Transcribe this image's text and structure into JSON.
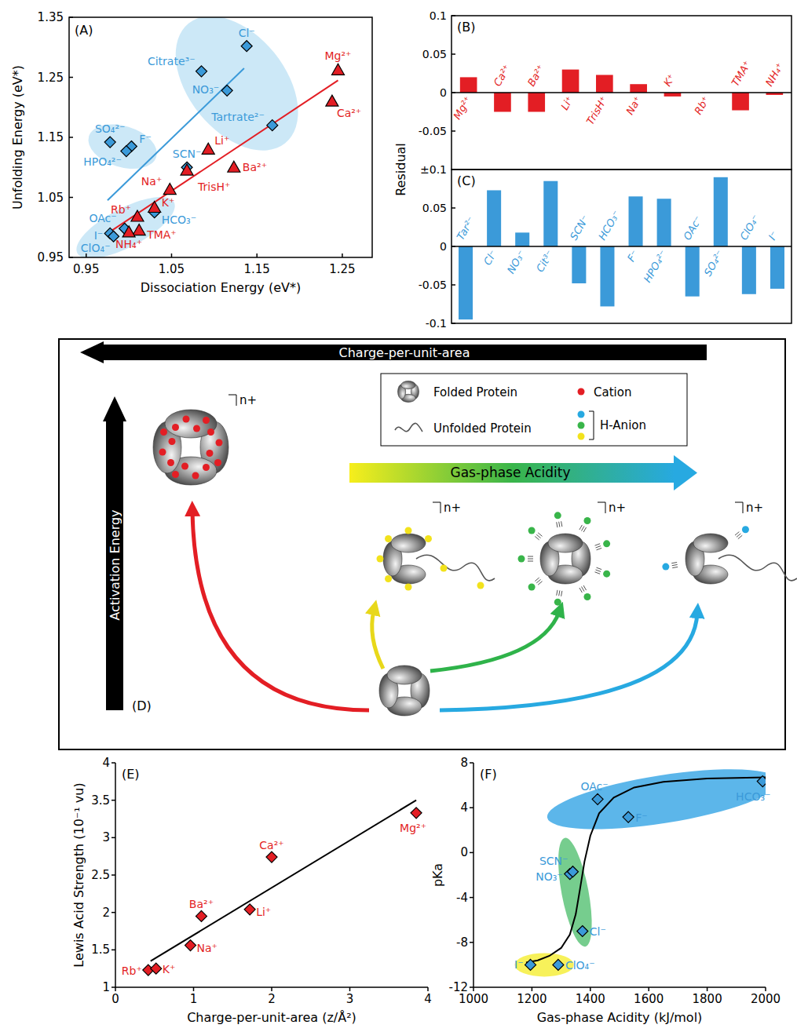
{
  "chart_data": [
    {
      "type": "scatter",
      "panel": "(A)",
      "x_label": "Dissociation Energy (eV*)",
      "y_label": "Unfolding Energy (eV*)",
      "xlim": [
        0.93,
        1.285
      ],
      "ylim": [
        0.95,
        1.35
      ],
      "xticks": [
        0.95,
        1.05,
        1.15,
        1.25
      ],
      "yticks": [
        0.95,
        1.05,
        1.15,
        1.25,
        1.35
      ],
      "series": [
        {
          "color": "#3b9ad9",
          "marker": "diamond",
          "labels": [
            "Cl⁻",
            "Citrate³⁻",
            "NO₃⁻",
            "Tartrate²⁻",
            "SO₄²⁻",
            "F⁻",
            "HPO₄²⁻",
            "SCN⁻",
            "HCO₃⁻",
            "OAc⁻",
            "I⁻",
            "ClO₄⁻"
          ],
          "x": [
            1.138,
            1.085,
            1.115,
            1.168,
            0.978,
            1.003,
            0.997,
            1.068,
            1.03,
            0.995,
            0.978,
            0.982
          ],
          "values": [
            1.302,
            1.26,
            1.228,
            1.17,
            1.142,
            1.135,
            1.127,
            1.1,
            1.025,
            0.998,
            0.99,
            0.985
          ],
          "fit": {
            "x": [
              0.975,
              1.135
            ],
            "values": [
              1.045,
              1.265
            ]
          },
          "groups": [
            {
              "members": [
                0,
                1,
                2,
                3
              ],
              "color": "#c3e4f6"
            },
            {
              "members": [
                4,
                5,
                6
              ],
              "color": "#c3e4f6"
            },
            {
              "members": [
                8,
                9,
                10,
                11
              ],
              "color": "#c3e4f6"
            }
          ]
        },
        {
          "color": "#e31e24",
          "marker": "triangle",
          "labels": [
            "Mg²⁺",
            "Ca²⁺",
            "Ba²⁺",
            "Li⁺",
            "TrisH⁺",
            "Na⁺",
            "K⁺",
            "Rb⁺",
            "TMA⁺",
            "NH₄⁺"
          ],
          "x": [
            1.245,
            1.238,
            1.123,
            1.093,
            1.068,
            1.048,
            1.03,
            1.01,
            1.012,
            1.0
          ],
          "values": [
            1.262,
            1.21,
            1.1,
            1.13,
            1.095,
            1.063,
            1.033,
            1.018,
            0.995,
            0.992
          ],
          "fit": {
            "x": [
              0.975,
              1.245
            ],
            "values": [
              0.99,
              1.245
            ]
          }
        }
      ]
    },
    {
      "type": "bar",
      "panel": "(B)",
      "y_label": "Residual",
      "color": "#e31e24",
      "categories": [
        "Mg²⁺",
        "Ca²⁺",
        "Ba²⁺",
        "Li⁺",
        "TrisH⁺",
        "Na⁺",
        "K⁺",
        "Rb⁺",
        "TMA⁺",
        "NH₄⁺"
      ],
      "values": [
        0.02,
        -0.025,
        -0.025,
        0.03,
        0.023,
        0.011,
        -0.005,
        0.0,
        -0.023,
        -0.003
      ],
      "ylim": [
        -0.1,
        0.1
      ],
      "yticks": [
        0.1,
        0.05,
        0,
        -0.05,
        {
          "value": -0.1,
          "label": "±0.1"
        }
      ]
    },
    {
      "type": "bar",
      "panel": "(C)",
      "color": "#3b9ad9",
      "categories": [
        "Tar²⁻",
        "Cl⁻",
        "NO₃⁻",
        "Cit³⁻",
        "SCN⁻",
        "HCO₃⁻",
        "F⁻",
        "HPO₄²⁻",
        "OAc⁻",
        "SO₄²⁻",
        "ClO₄⁻",
        "I⁻"
      ],
      "values": [
        -0.095,
        0.073,
        0.018,
        0.085,
        -0.048,
        -0.078,
        0.065,
        0.062,
        -0.065,
        0.09,
        -0.062,
        -0.055
      ],
      "ylim": [
        -0.1,
        0.1
      ],
      "yticks": [
        0.05,
        0,
        -0.05,
        -0.1
      ]
    },
    {
      "type": "scatter",
      "panel": "(E)",
      "x_label": "Charge-per-unit-area (z/Å²)",
      "y_label": "Lewis Acid Strength (10⁻¹ vu)",
      "xlim": [
        0,
        4
      ],
      "ylim": [
        1,
        4
      ],
      "xticks": [
        0,
        1,
        2,
        3,
        4
      ],
      "yticks": [
        1,
        1.5,
        2,
        2.5,
        3,
        3.5,
        4
      ],
      "series": [
        {
          "color": "#e31e24",
          "marker": "diamond",
          "labels": [
            "Rb⁺",
            "K⁺",
            "Na⁺",
            "Ba²⁺",
            "Li⁺",
            "Ca²⁺",
            "Mg²⁺"
          ],
          "x": [
            0.42,
            0.52,
            0.96,
            1.1,
            1.72,
            2.0,
            3.85
          ],
          "values": [
            1.23,
            1.25,
            1.56,
            1.95,
            2.04,
            2.74,
            3.33
          ],
          "fit": {
            "x": [
              0.45,
              3.85
            ],
            "values": [
              1.35,
              3.5
            ]
          }
        }
      ]
    },
    {
      "type": "scatter",
      "panel": "(F)",
      "x_label": "Gas-phase Acidity (kJ/mol)",
      "y_label": "pKa",
      "xlim": [
        1000,
        2000
      ],
      "ylim": [
        -12,
        8
      ],
      "xticks": [
        1000,
        1200,
        1400,
        1600,
        1800,
        2000
      ],
      "yticks": [
        -12,
        -8,
        -4,
        0,
        4,
        8
      ],
      "series": [
        {
          "color": "#3b9ad9",
          "marker": "diamond",
          "labels": [
            "I⁻",
            "ClO₄⁻",
            "NO₃⁻",
            "SCN⁻",
            "Cl⁻",
            "OAc⁻",
            "F⁻",
            "HCO₃⁻"
          ],
          "x": [
            1195,
            1290,
            1330,
            1340,
            1373,
            1425,
            1530,
            1990
          ],
          "values": [
            -10,
            -10,
            -1.9,
            -1.7,
            -7,
            4.76,
            3.17,
            6.35
          ],
          "fit": {
            "x": [
              1180,
              1220,
              1260,
              1300,
              1330,
              1350,
              1365,
              1380,
              1400,
              1430,
              1480,
              1550,
              1650,
              1800,
              2000
            ],
            "values": [
              -9.8,
              -9.6,
              -9.2,
              -8.5,
              -7.3,
              -5.5,
              -3.2,
              -0.8,
              1.5,
              3.5,
              4.9,
              5.8,
              6.3,
              6.6,
              6.7
            ]
          },
          "groups": [
            {
              "members": [
                0,
                1
              ],
              "color": "#f6ee3d"
            },
            {
              "members": [
                2,
                3,
                4
              ],
              "color": "#5ec47a"
            },
            {
              "members": [
                5,
                6,
                7
              ],
              "color": "#3fa9e6"
            }
          ]
        }
      ]
    }
  ],
  "diagram": {
    "panel": "(D)",
    "top_arrow": "Charge-per-unit-area",
    "side_arrow": "Activation Energy",
    "gradient_arrow": "Gas-phase Acidity",
    "key": {
      "folded": "Folded Protein",
      "unfolded": "Unfolded Protein",
      "cation": "Cation",
      "anion": "H-Anion"
    },
    "charge_label": "n+"
  }
}
